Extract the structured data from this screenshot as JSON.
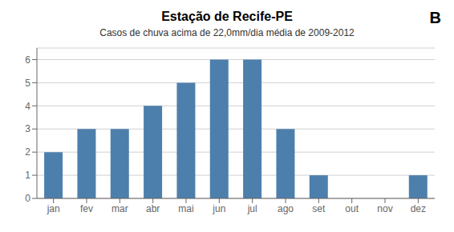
{
  "chart_data": {
    "type": "bar",
    "title": "Estação de Recife-PE",
    "subtitle": "Casos de chuva acima de 22,0mm/dia  média de 2009-2012",
    "annotations": [
      "B"
    ],
    "categories": [
      "jan",
      "fev",
      "mar",
      "abr",
      "mai",
      "jun",
      "jul",
      "ago",
      "set",
      "out",
      "nov",
      "dez"
    ],
    "values": [
      2,
      3,
      3,
      4,
      5,
      6,
      6,
      3,
      1,
      0,
      0,
      1
    ],
    "color": "#4d7fac",
    "ylim": [
      0,
      6.5
    ],
    "yticks": [
      0,
      1,
      2,
      3,
      4,
      5,
      6
    ],
    "grid": true
  }
}
